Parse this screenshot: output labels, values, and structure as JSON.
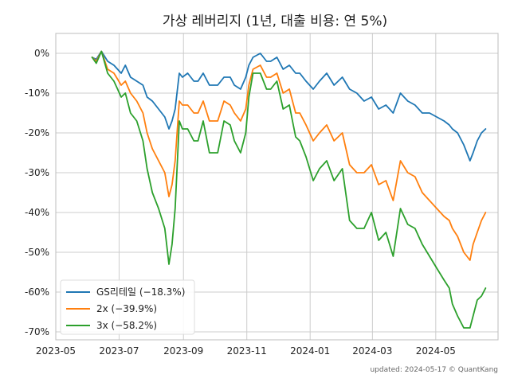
{
  "chart_data": {
    "type": "line",
    "title": "가상 레버리지 (1년, 대출 비용: 연 5%)",
    "xlabel": "",
    "ylabel": "",
    "xlim": [
      "2023-05-01",
      "2024-06-30"
    ],
    "ylim": [
      -72,
      5
    ],
    "x_tick_labels": [
      "2023-05",
      "2023-07",
      "2023-09",
      "2023-11",
      "2024-01",
      "2024-03",
      "2024-05"
    ],
    "y_tick_labels": [
      "0%",
      "-10%",
      "-20%",
      "-30%",
      "-40%",
      "-50%",
      "-60%",
      "-70%"
    ],
    "y_tick_values": [
      0,
      -10,
      -20,
      -30,
      -40,
      -50,
      -60,
      -70
    ],
    "grid": true,
    "legend_position": "bottom-left",
    "x": [
      "2023-06-05",
      "2023-06-09",
      "2023-06-14",
      "2023-06-20",
      "2023-06-26",
      "2023-07-03",
      "2023-07-07",
      "2023-07-12",
      "2023-07-18",
      "2023-07-24",
      "2023-07-28",
      "2023-08-02",
      "2023-08-08",
      "2023-08-14",
      "2023-08-18",
      "2023-08-21",
      "2023-08-24",
      "2023-08-28",
      "2023-08-31",
      "2023-09-05",
      "2023-09-11",
      "2023-09-15",
      "2023-09-20",
      "2023-09-26",
      "2023-10-04",
      "2023-10-10",
      "2023-10-16",
      "2023-10-20",
      "2023-10-26",
      "2023-10-31",
      "2023-11-03",
      "2023-11-07",
      "2023-11-14",
      "2023-11-20",
      "2023-11-24",
      "2023-11-30",
      "2023-12-06",
      "2023-12-12",
      "2023-12-18",
      "2023-12-22",
      "2023-12-28",
      "2024-01-04",
      "2024-01-10",
      "2024-01-17",
      "2024-01-24",
      "2024-02-01",
      "2024-02-08",
      "2024-02-15",
      "2024-02-22",
      "2024-02-29",
      "2024-03-07",
      "2024-03-14",
      "2024-03-21",
      "2024-03-28",
      "2024-04-04",
      "2024-04-11",
      "2024-04-18",
      "2024-04-25",
      "2024-05-02",
      "2024-05-09",
      "2024-05-14",
      "2024-05-17",
      "2024-05-22",
      "2024-05-28",
      "2024-06-03",
      "2024-06-06",
      "2024-06-10",
      "2024-06-14",
      "2024-06-18"
    ],
    "series": [
      {
        "name": "GS리테일 (−18.3%)",
        "color": "#1f77b4",
        "values": [
          -1,
          -1.5,
          0.5,
          -2,
          -3,
          -5,
          -3,
          -6,
          -7,
          -8,
          -11,
          -12,
          -14,
          -16,
          -19,
          -17,
          -14,
          -5,
          -6,
          -5,
          -7,
          -7,
          -5,
          -8,
          -8,
          -6,
          -6,
          -8,
          -9,
          -6,
          -3,
          -1,
          0,
          -2,
          -2,
          -1,
          -4,
          -3,
          -5,
          -5,
          -7,
          -9,
          -7,
          -5,
          -8,
          -6,
          -9,
          -10,
          -12,
          -11,
          -14,
          -13,
          -15,
          -10,
          -12,
          -13,
          -15,
          -15,
          -16,
          -17,
          -18,
          -19,
          -20,
          -23,
          -27,
          -25,
          -22,
          -20,
          -19
        ]
      },
      {
        "name": "2x (−39.9%)",
        "color": "#ff7f0e",
        "values": [
          -1,
          -2,
          0.5,
          -4,
          -5,
          -8,
          -7,
          -10,
          -12,
          -15,
          -20,
          -24,
          -27,
          -30,
          -36,
          -33,
          -27,
          -12,
          -13,
          -13,
          -15,
          -15,
          -12,
          -17,
          -17,
          -12,
          -13,
          -15,
          -17,
          -14,
          -8,
          -4,
          -3,
          -6,
          -6,
          -5,
          -10,
          -9,
          -15,
          -15,
          -18,
          -22,
          -20,
          -18,
          -22,
          -20,
          -28,
          -30,
          -30,
          -28,
          -33,
          -32,
          -37,
          -27,
          -30,
          -31,
          -35,
          -37,
          -39,
          -41,
          -42,
          -44,
          -46,
          -50,
          -52,
          -48,
          -45,
          -42,
          -40
        ]
      },
      {
        "name": "3x (−58.2%)",
        "color": "#2ca02c",
        "values": [
          -1,
          -2.5,
          0.5,
          -5,
          -7,
          -11,
          -10,
          -15,
          -17,
          -22,
          -29,
          -35,
          -39,
          -44,
          -53,
          -48,
          -39,
          -17,
          -19,
          -19,
          -22,
          -22,
          -17,
          -25,
          -25,
          -17,
          -18,
          -22,
          -25,
          -20,
          -11,
          -5,
          -5,
          -9,
          -9,
          -7,
          -14,
          -13,
          -21,
          -22,
          -26,
          -32,
          -29,
          -27,
          -32,
          -29,
          -42,
          -44,
          -44,
          -40,
          -47,
          -45,
          -51,
          -39,
          -43,
          -44,
          -48,
          -51,
          -54,
          -57,
          -59,
          -63,
          -66,
          -69,
          -69,
          -66,
          -62,
          -61,
          -59
        ]
      }
    ]
  },
  "credit": "updated: 2024-05-17 © QuantKang"
}
